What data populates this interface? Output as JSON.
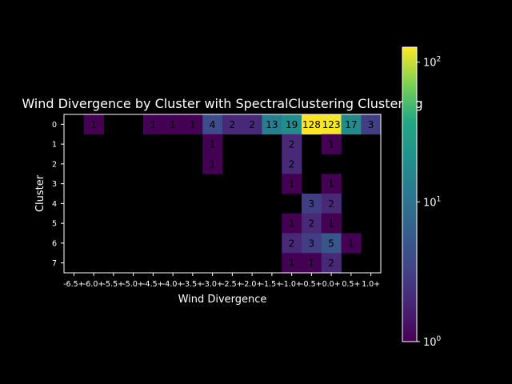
{
  "chart_data": {
    "type": "heatmap",
    "title": "Wind Divergence by Cluster with SpectralClustering Clustering",
    "xlabel": "Wind Divergence",
    "ylabel": "Cluster",
    "x_categories": [
      "-6.5+",
      "-6.0+",
      "-5.5+",
      "-5.0+",
      "-4.5+",
      "-4.0+",
      "-3.5+",
      "-3.0+",
      "-2.5+",
      "-2.0+",
      "-1.5+",
      "-1.0+",
      "-0.5+",
      "0.0+",
      "0.5+",
      "1.0+"
    ],
    "y_categories": [
      "0",
      "1",
      "2",
      "3",
      "4",
      "5",
      "6",
      "7"
    ],
    "cells": [
      {
        "row": 0,
        "col": 1,
        "value": 1
      },
      {
        "row": 0,
        "col": 4,
        "value": 1
      },
      {
        "row": 0,
        "col": 5,
        "value": 1
      },
      {
        "row": 0,
        "col": 6,
        "value": 1
      },
      {
        "row": 0,
        "col": 7,
        "value": 4
      },
      {
        "row": 0,
        "col": 8,
        "value": 2
      },
      {
        "row": 0,
        "col": 9,
        "value": 2
      },
      {
        "row": 0,
        "col": 10,
        "value": 13
      },
      {
        "row": 0,
        "col": 11,
        "value": 19
      },
      {
        "row": 0,
        "col": 12,
        "value": 128
      },
      {
        "row": 0,
        "col": 13,
        "value": 123
      },
      {
        "row": 0,
        "col": 14,
        "value": 17
      },
      {
        "row": 0,
        "col": 15,
        "value": 3
      },
      {
        "row": 1,
        "col": 7,
        "value": 1
      },
      {
        "row": 1,
        "col": 11,
        "value": 2
      },
      {
        "row": 1,
        "col": 13,
        "value": 1
      },
      {
        "row": 2,
        "col": 7,
        "value": 1
      },
      {
        "row": 2,
        "col": 11,
        "value": 2
      },
      {
        "row": 3,
        "col": 11,
        "value": 1
      },
      {
        "row": 3,
        "col": 13,
        "value": 1
      },
      {
        "row": 4,
        "col": 12,
        "value": 3
      },
      {
        "row": 4,
        "col": 13,
        "value": 2
      },
      {
        "row": 5,
        "col": 11,
        "value": 1
      },
      {
        "row": 5,
        "col": 12,
        "value": 2
      },
      {
        "row": 5,
        "col": 13,
        "value": 1
      },
      {
        "row": 6,
        "col": 11,
        "value": 2
      },
      {
        "row": 6,
        "col": 12,
        "value": 3
      },
      {
        "row": 6,
        "col": 13,
        "value": 5
      },
      {
        "row": 6,
        "col": 14,
        "value": 1
      },
      {
        "row": 7,
        "col": 11,
        "value": 1
      },
      {
        "row": 7,
        "col": 12,
        "value": 1
      },
      {
        "row": 7,
        "col": 13,
        "value": 2
      }
    ],
    "colorbar": {
      "scale": "log",
      "range": [
        1,
        128
      ],
      "colormap": "viridis",
      "ticks": [
        {
          "value": 1,
          "base": "10",
          "exp": "0"
        },
        {
          "value": 10,
          "base": "10",
          "exp": "1"
        },
        {
          "value": 100,
          "base": "10",
          "exp": "2"
        }
      ]
    },
    "background": "#000000",
    "foreground": "#ffffff",
    "grid": false
  }
}
